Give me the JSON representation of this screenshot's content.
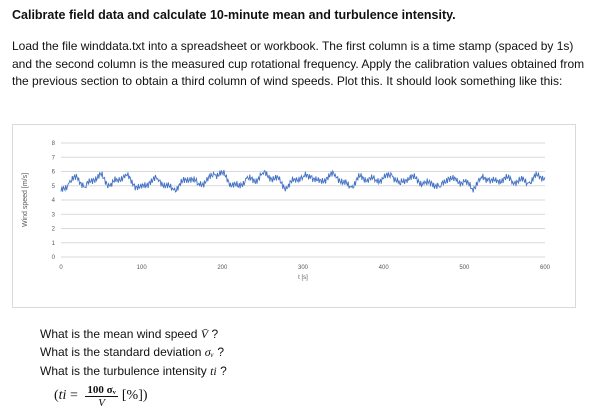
{
  "doc": {
    "title": "Calibrate field data and calculate 10-minute mean and turbulence intensity.",
    "paragraph": "Load the file winddata.txt into a spreadsheet or workbook. The first column is a time stamp (spaced by 1s) and the second column is the measured cup rotational frequency. Apply the calibration values obtained from the previous section to obtain a third column of wind speeds. Plot this. It should look something like this:",
    "questions": {
      "q1_prefix": "What is the mean wind speed ",
      "q1_symbol": "V̄",
      "q1_suffix": " ?",
      "q2_prefix": "What is the standard deviation ",
      "q2_symbol": "σᵥ",
      "q2_suffix": " ?",
      "q3_prefix": "What is the turbulence intensity ",
      "q3_symbol": "ti",
      "q3_suffix": " ?"
    },
    "formula": {
      "open": "(",
      "lhs": "ti",
      "equals": " = ",
      "numerator": "100 σᵥ",
      "denominator": "V",
      "unit": "[%])"
    }
  },
  "chart_data": {
    "type": "line",
    "xlabel": "t [s]",
    "ylabel": "Wind speed [m/s]",
    "xlim": [
      0,
      600
    ],
    "ylim": [
      0,
      8
    ],
    "x_ticks": [
      0,
      100,
      200,
      300,
      400,
      500,
      600
    ],
    "y_ticks": [
      0,
      1,
      2,
      3,
      4,
      5,
      6,
      7,
      8
    ],
    "grid": true,
    "series": [
      {
        "color": "#4472c4",
        "x": [
          0,
          10,
          20,
          30,
          40,
          50,
          60,
          70,
          80,
          90,
          100,
          110,
          120,
          130,
          140,
          150,
          160,
          170,
          180,
          190,
          200,
          210,
          220,
          230,
          240,
          250,
          260,
          270,
          280,
          290,
          300,
          310,
          320,
          330,
          340,
          350,
          360,
          370,
          380,
          390,
          400,
          410,
          420,
          430,
          440,
          450,
          460,
          470,
          480,
          490,
          500,
          510,
          520,
          530,
          540,
          550,
          560,
          570,
          580,
          590,
          600
        ],
        "y": [
          4.6,
          5.2,
          5.6,
          4.9,
          5.5,
          5.7,
          5.0,
          5.4,
          5.8,
          5.1,
          4.8,
          5.3,
          5.5,
          5.0,
          4.7,
          5.2,
          5.6,
          5.1,
          5.3,
          5.8,
          5.9,
          5.2,
          4.9,
          5.5,
          5.3,
          5.9,
          5.6,
          5.4,
          4.8,
          5.5,
          5.6,
          5.7,
          5.2,
          5.6,
          5.8,
          5.2,
          4.9,
          5.6,
          5.5,
          5.4,
          5.5,
          5.8,
          5.1,
          5.6,
          5.5,
          5.1,
          5.2,
          4.9,
          5.6,
          5.3,
          5.3,
          4.8,
          5.5,
          5.5,
          5.2,
          5.6,
          5.3,
          5.4,
          5.2,
          5.7,
          5.6
        ]
      }
    ]
  }
}
